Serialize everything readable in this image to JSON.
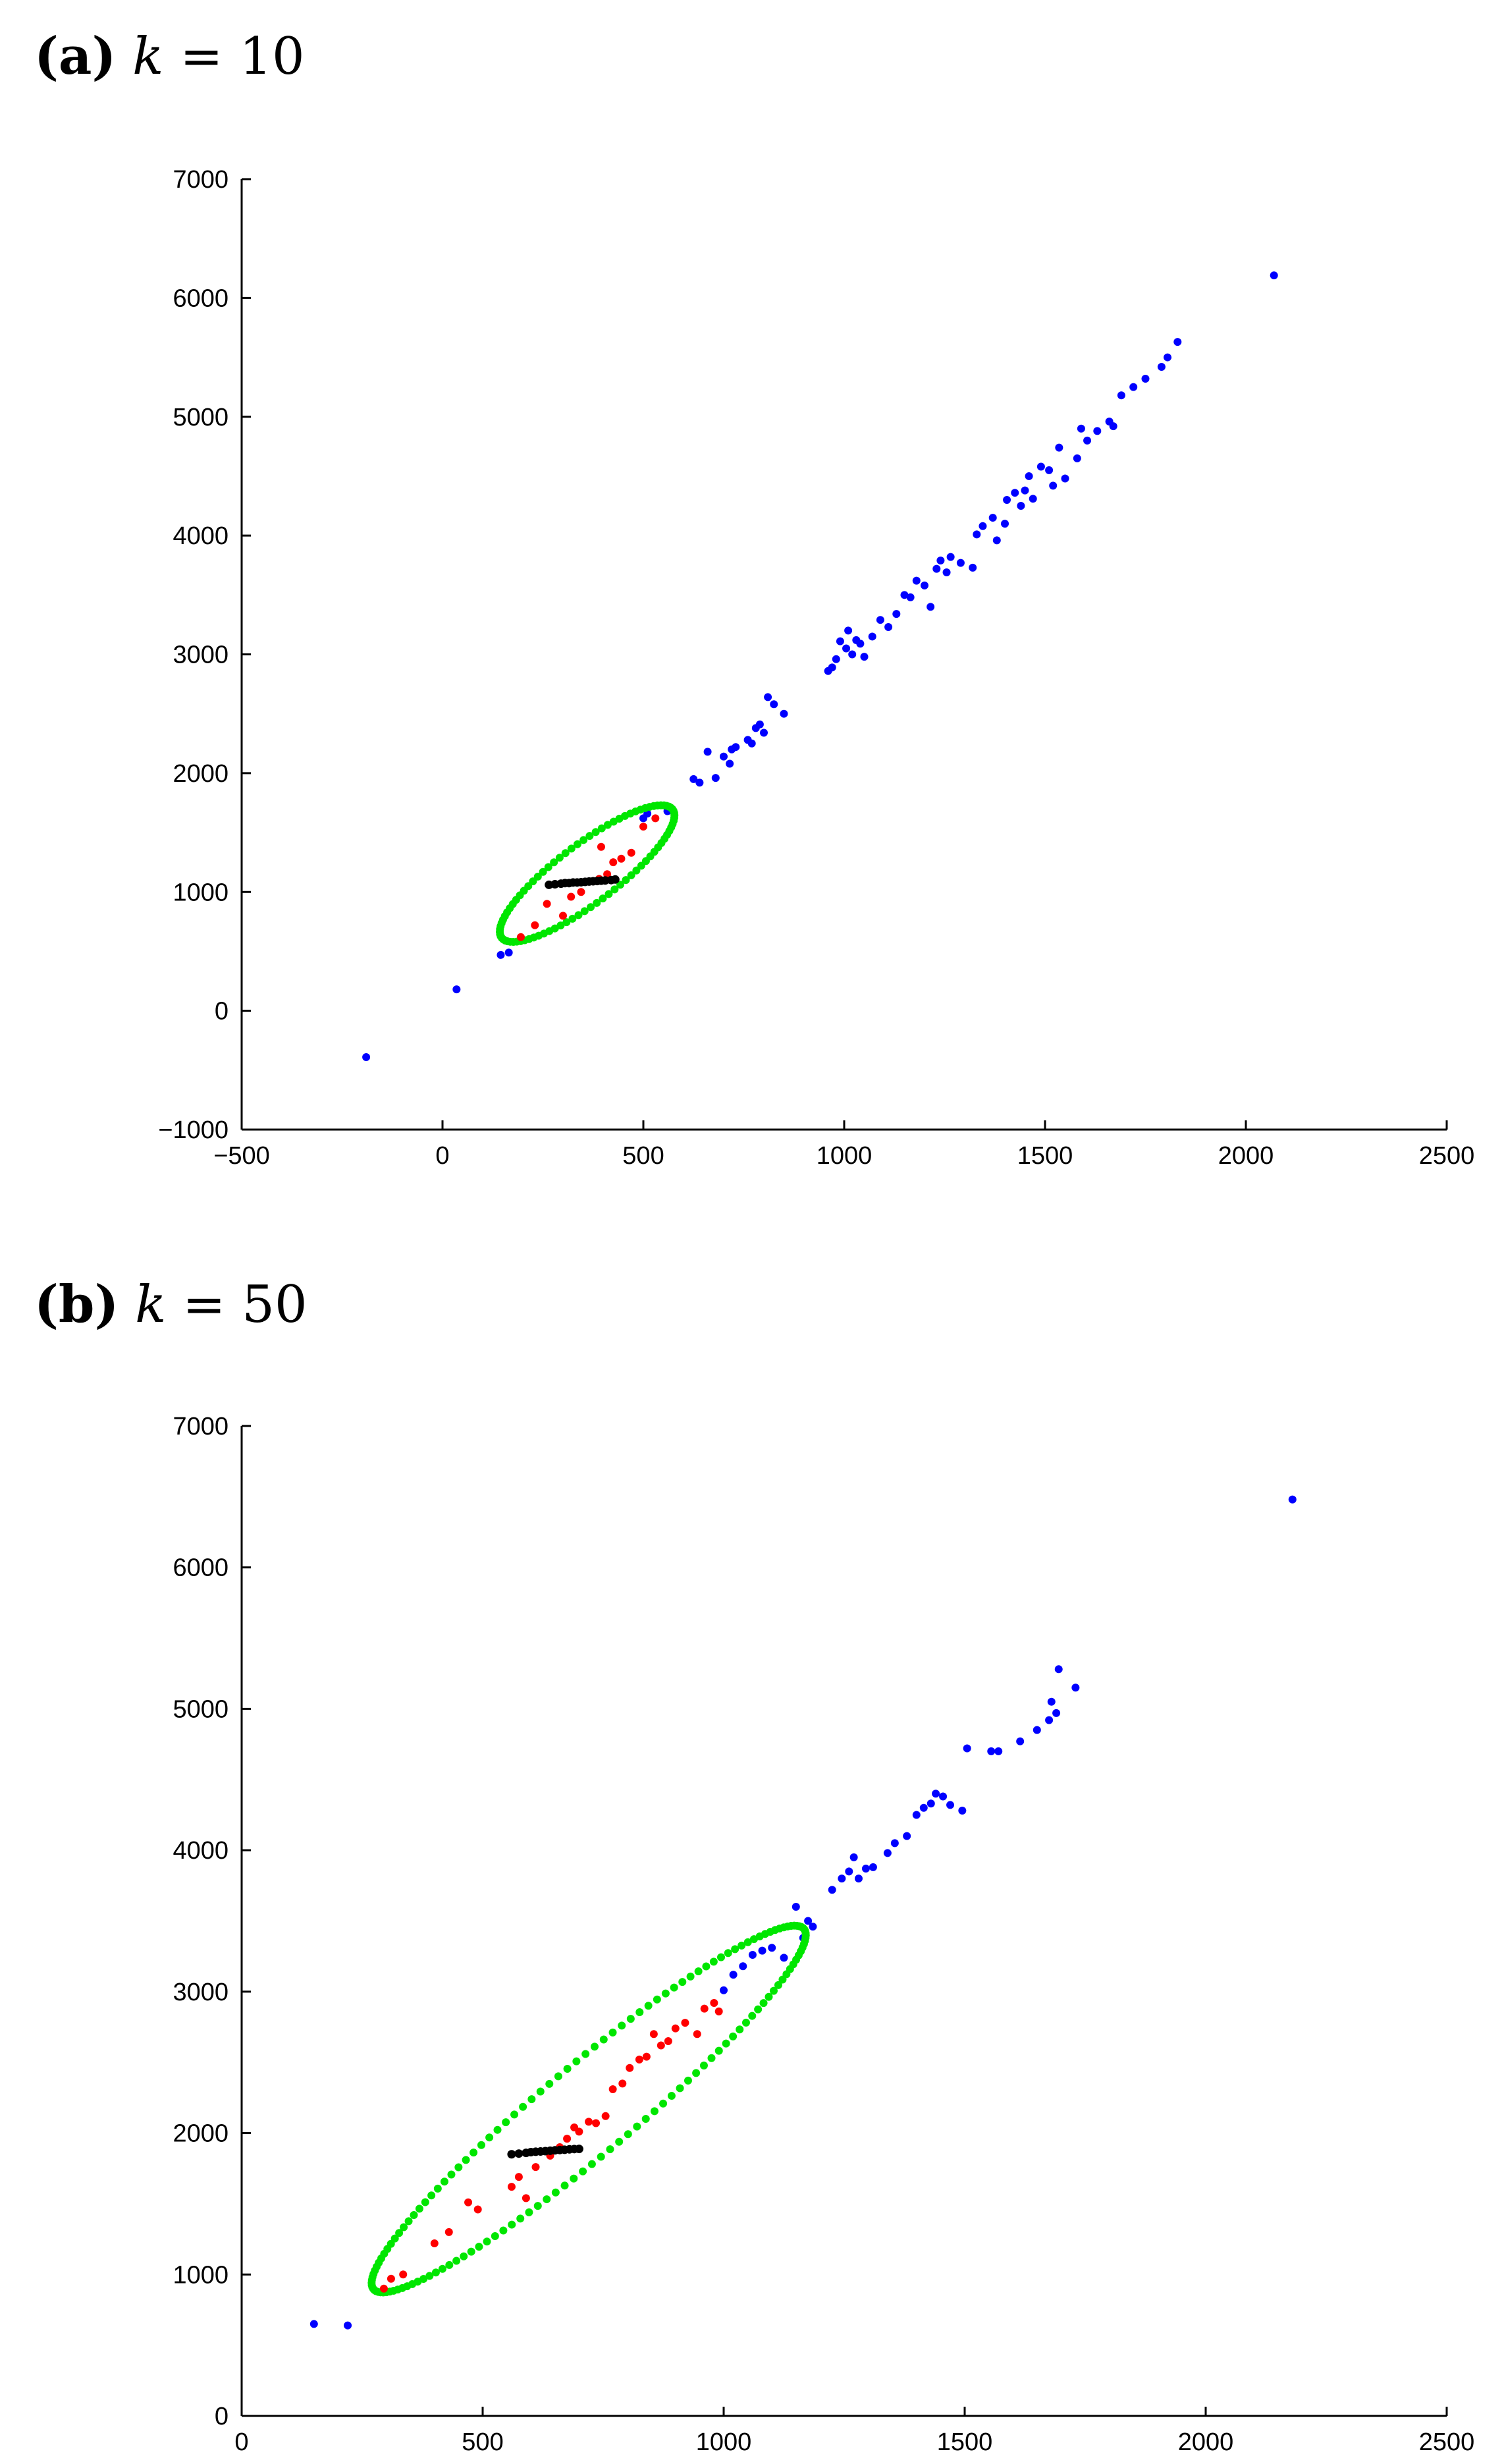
{
  "panels": [
    {
      "id": "a",
      "label": "(a)",
      "k_symbol": "k",
      "k_expr": " = 10"
    },
    {
      "id": "b",
      "label": "(b)",
      "k_symbol": "k",
      "k_expr": " = 50"
    }
  ],
  "chart_data": [
    {
      "type": "scatter",
      "title": "(a) k = 10",
      "xlabel": "",
      "ylabel": "",
      "xlim": [
        -500,
        2500
      ],
      "ylim": [
        -1000,
        7000
      ],
      "xticks": [
        -500,
        0,
        500,
        1000,
        1500,
        2000,
        2500
      ],
      "yticks": [
        -1000,
        0,
        1000,
        2000,
        3000,
        4000,
        5000,
        6000,
        7000
      ],
      "grid": false,
      "colors": {
        "blue": "#0000ff",
        "red": "#ff0000",
        "black": "#000000",
        "green": "#00e600"
      },
      "blue_points": [
        [
          -190,
          -390
        ],
        [
          35,
          180
        ],
        [
          145,
          470
        ],
        [
          165,
          490
        ],
        [
          500,
          1620
        ],
        [
          510,
          1660
        ],
        [
          560,
          1680
        ],
        [
          625,
          1950
        ],
        [
          640,
          1920
        ],
        [
          660,
          2180
        ],
        [
          680,
          1960
        ],
        [
          700,
          2140
        ],
        [
          715,
          2080
        ],
        [
          720,
          2200
        ],
        [
          730,
          2220
        ],
        [
          760,
          2280
        ],
        [
          770,
          2250
        ],
        [
          780,
          2380
        ],
        [
          790,
          2410
        ],
        [
          800,
          2340
        ],
        [
          810,
          2640
        ],
        [
          825,
          2580
        ],
        [
          850,
          2500
        ],
        [
          960,
          2860
        ],
        [
          970,
          2890
        ],
        [
          980,
          2960
        ],
        [
          990,
          3110
        ],
        [
          1005,
          3050
        ],
        [
          1010,
          3200
        ],
        [
          1020,
          3000
        ],
        [
          1030,
          3120
        ],
        [
          1040,
          3090
        ],
        [
          1050,
          2980
        ],
        [
          1070,
          3150
        ],
        [
          1090,
          3290
        ],
        [
          1110,
          3230
        ],
        [
          1130,
          3340
        ],
        [
          1150,
          3500
        ],
        [
          1165,
          3480
        ],
        [
          1180,
          3620
        ],
        [
          1200,
          3580
        ],
        [
          1215,
          3400
        ],
        [
          1230,
          3720
        ],
        [
          1240,
          3790
        ],
        [
          1255,
          3690
        ],
        [
          1265,
          3820
        ],
        [
          1290,
          3770
        ],
        [
          1320,
          3730
        ],
        [
          1330,
          4010
        ],
        [
          1345,
          4080
        ],
        [
          1370,
          4150
        ],
        [
          1380,
          3960
        ],
        [
          1400,
          4100
        ],
        [
          1405,
          4300
        ],
        [
          1425,
          4360
        ],
        [
          1440,
          4250
        ],
        [
          1450,
          4380
        ],
        [
          1460,
          4500
        ],
        [
          1470,
          4310
        ],
        [
          1490,
          4580
        ],
        [
          1510,
          4550
        ],
        [
          1520,
          4420
        ],
        [
          1535,
          4740
        ],
        [
          1550,
          4480
        ],
        [
          1580,
          4650
        ],
        [
          1590,
          4900
        ],
        [
          1605,
          4800
        ],
        [
          1630,
          4880
        ],
        [
          1660,
          4960
        ],
        [
          1670,
          4920
        ],
        [
          1690,
          5180
        ],
        [
          1720,
          5250
        ],
        [
          1750,
          5320
        ],
        [
          1790,
          5420
        ],
        [
          1805,
          5500
        ],
        [
          1830,
          5630
        ],
        [
          2070,
          6190
        ]
      ],
      "red_points": [
        [
          195,
          620
        ],
        [
          230,
          720
        ],
        [
          260,
          900
        ],
        [
          300,
          800
        ],
        [
          320,
          960
        ],
        [
          345,
          1000
        ],
        [
          390,
          1110
        ],
        [
          395,
          1380
        ],
        [
          410,
          1150
        ],
        [
          425,
          1250
        ],
        [
          445,
          1280
        ],
        [
          470,
          1330
        ],
        [
          500,
          1550
        ],
        [
          530,
          1620
        ]
      ],
      "black_points": [
        [
          265,
          1060
        ],
        [
          280,
          1065
        ],
        [
          295,
          1070
        ],
        [
          305,
          1075
        ],
        [
          315,
          1075
        ],
        [
          325,
          1080
        ],
        [
          335,
          1080
        ],
        [
          345,
          1082
        ],
        [
          355,
          1085
        ],
        [
          365,
          1088
        ],
        [
          375,
          1090
        ],
        [
          385,
          1092
        ],
        [
          395,
          1095
        ],
        [
          405,
          1097
        ],
        [
          420,
          1100
        ],
        [
          430,
          1105
        ]
      ],
      "ellipse": {
        "center": [
          360,
          1155
        ],
        "a_dir": [
          1,
          3.0
        ],
        "semi_major": 605,
        "semi_minor": 34,
        "n": 90
      }
    },
    {
      "type": "scatter",
      "title": "(b) k = 50",
      "xlabel": "",
      "ylabel": "",
      "xlim": [
        0,
        2500
      ],
      "ylim": [
        0,
        7000
      ],
      "xticks": [
        0,
        500,
        1000,
        1500,
        2000,
        2500
      ],
      "yticks": [
        0,
        1000,
        2000,
        3000,
        4000,
        5000,
        6000,
        7000
      ],
      "grid": false,
      "colors": {
        "blue": "#0000ff",
        "red": "#ff0000",
        "black": "#000000",
        "green": "#00e600"
      },
      "blue_points": [
        [
          150,
          650
        ],
        [
          220,
          640
        ],
        [
          1000,
          3010
        ],
        [
          1020,
          3120
        ],
        [
          1040,
          3180
        ],
        [
          1060,
          3260
        ],
        [
          1080,
          3290
        ],
        [
          1100,
          3310
        ],
        [
          1125,
          3240
        ],
        [
          1150,
          3600
        ],
        [
          1165,
          3380
        ],
        [
          1175,
          3500
        ],
        [
          1185,
          3460
        ],
        [
          1225,
          3720
        ],
        [
          1245,
          3800
        ],
        [
          1260,
          3850
        ],
        [
          1270,
          3950
        ],
        [
          1280,
          3800
        ],
        [
          1295,
          3870
        ],
        [
          1310,
          3880
        ],
        [
          1340,
          3980
        ],
        [
          1355,
          4050
        ],
        [
          1380,
          4100
        ],
        [
          1400,
          4250
        ],
        [
          1415,
          4300
        ],
        [
          1430,
          4330
        ],
        [
          1440,
          4400
        ],
        [
          1455,
          4380
        ],
        [
          1470,
          4320
        ],
        [
          1495,
          4280
        ],
        [
          1505,
          4720
        ],
        [
          1555,
          4700
        ],
        [
          1570,
          4700
        ],
        [
          1615,
          4770
        ],
        [
          1650,
          4850
        ],
        [
          1675,
          4920
        ],
        [
          1680,
          5050
        ],
        [
          1690,
          4970
        ],
        [
          1695,
          5280
        ],
        [
          1730,
          5150
        ],
        [
          2180,
          6480
        ]
      ],
      "red_points": [
        [
          295,
          900
        ],
        [
          310,
          970
        ],
        [
          335,
          1000
        ],
        [
          400,
          1220
        ],
        [
          430,
          1300
        ],
        [
          470,
          1510
        ],
        [
          490,
          1460
        ],
        [
          560,
          1620
        ],
        [
          575,
          1690
        ],
        [
          590,
          1540
        ],
        [
          610,
          1760
        ],
        [
          640,
          1840
        ],
        [
          660,
          1900
        ],
        [
          675,
          1960
        ],
        [
          690,
          2040
        ],
        [
          700,
          2010
        ],
        [
          720,
          2080
        ],
        [
          735,
          2070
        ],
        [
          755,
          2120
        ],
        [
          770,
          2310
        ],
        [
          790,
          2350
        ],
        [
          805,
          2460
        ],
        [
          825,
          2520
        ],
        [
          840,
          2540
        ],
        [
          855,
          2700
        ],
        [
          870,
          2620
        ],
        [
          885,
          2650
        ],
        [
          900,
          2740
        ],
        [
          920,
          2780
        ],
        [
          945,
          2700
        ],
        [
          960,
          2880
        ],
        [
          980,
          2920
        ],
        [
          990,
          2860
        ]
      ],
      "black_points": [
        [
          560,
          1850
        ],
        [
          575,
          1855
        ],
        [
          590,
          1860
        ],
        [
          600,
          1865
        ],
        [
          610,
          1868
        ],
        [
          620,
          1870
        ],
        [
          630,
          1872
        ],
        [
          640,
          1875
        ],
        [
          650,
          1878
        ],
        [
          660,
          1880
        ],
        [
          670,
          1882
        ],
        [
          680,
          1885
        ],
        [
          690,
          1887
        ],
        [
          700,
          1888
        ]
      ],
      "ellipse": {
        "center": [
          720,
          2170
        ],
        "a_dir": [
          1,
          3.0
        ],
        "semi_major": 1366,
        "semi_minor": 42,
        "n": 150
      }
    }
  ]
}
